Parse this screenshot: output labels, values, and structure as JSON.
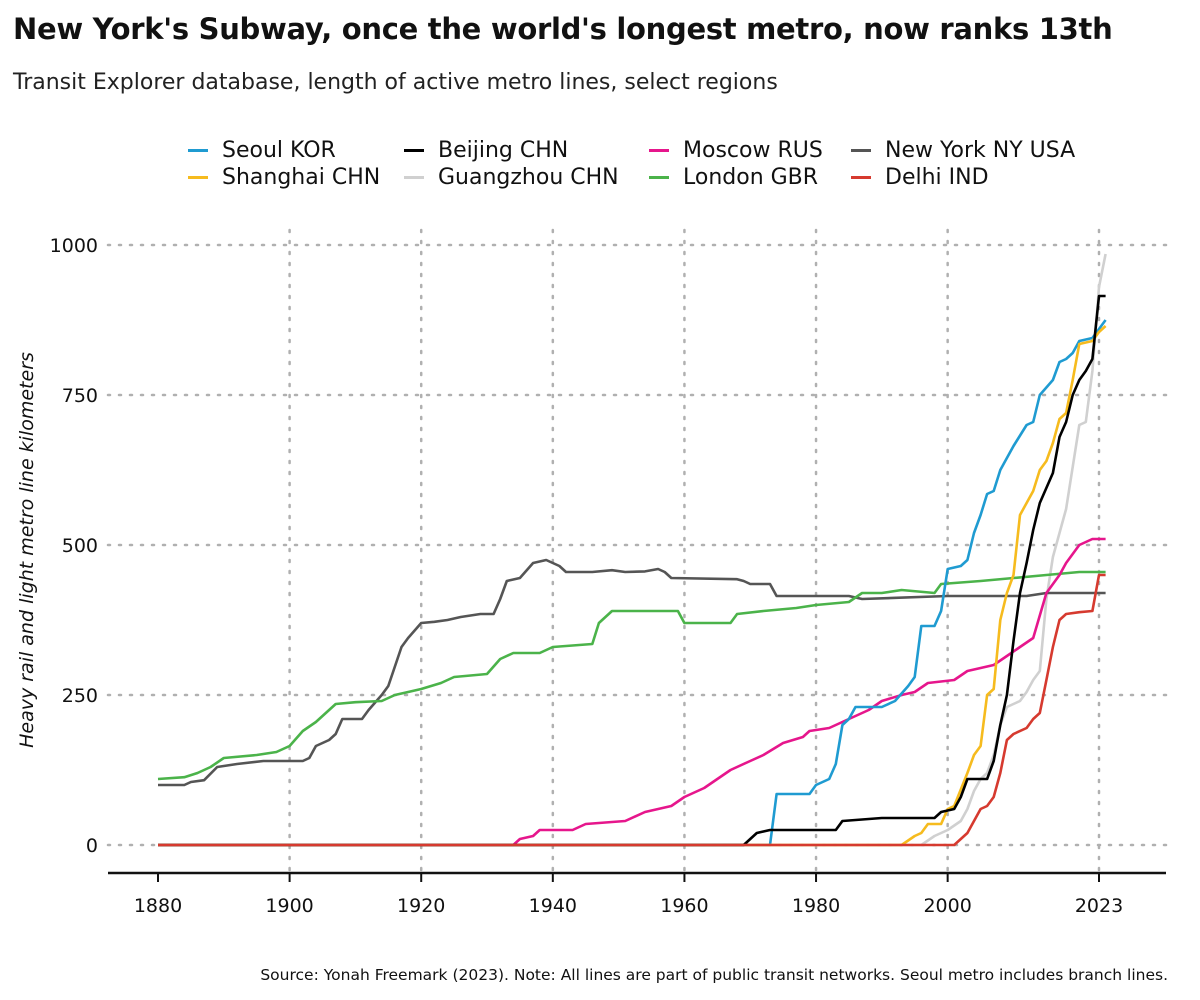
{
  "chart_data": {
    "type": "line",
    "title": "New York's Subway, once the world's longest metro, now ranks 13th",
    "subtitle": "Transit Explorer database, length of active metro lines, select regions",
    "xlabel": "",
    "ylabel": "Heavy rail and light metro line kilometers",
    "source": "Source: Yonah Freemark (2023). Note: All lines are part of public transit networks. Seoul metro includes branch lines.",
    "xlim": [
      1873,
      2033
    ],
    "ylim": [
      -45,
      1000
    ],
    "x_ticks": [
      1880,
      1900,
      1920,
      1940,
      1960,
      1980,
      2000,
      2023
    ],
    "y_ticks": [
      0,
      250,
      500,
      750,
      1000
    ],
    "grid": true,
    "legend_position": "top",
    "series": [
      {
        "name": "Seoul KOR",
        "color": "#1f9bd1",
        "points": [
          [
            1880,
            0
          ],
          [
            1973,
            0
          ],
          [
            1974,
            85
          ],
          [
            1979,
            85
          ],
          [
            1980,
            100
          ],
          [
            1982,
            110
          ],
          [
            1983,
            135
          ],
          [
            1984,
            200
          ],
          [
            1985,
            210
          ],
          [
            1986,
            230
          ],
          [
            1990,
            230
          ],
          [
            1992,
            240
          ],
          [
            1994,
            265
          ],
          [
            1995,
            280
          ],
          [
            1996,
            365
          ],
          [
            1998,
            365
          ],
          [
            1999,
            390
          ],
          [
            2000,
            460
          ],
          [
            2002,
            465
          ],
          [
            2003,
            475
          ],
          [
            2004,
            520
          ],
          [
            2005,
            550
          ],
          [
            2006,
            585
          ],
          [
            2007,
            590
          ],
          [
            2008,
            625
          ],
          [
            2010,
            665
          ],
          [
            2012,
            700
          ],
          [
            2013,
            705
          ],
          [
            2014,
            750
          ],
          [
            2016,
            775
          ],
          [
            2017,
            805
          ],
          [
            2018,
            810
          ],
          [
            2019,
            820
          ],
          [
            2020,
            840
          ],
          [
            2022,
            845
          ],
          [
            2023,
            860
          ],
          [
            2024,
            875
          ]
        ]
      },
      {
        "name": "Shanghai CHN",
        "color": "#f6bb1e",
        "points": [
          [
            1880,
            0
          ],
          [
            1993,
            0
          ],
          [
            1995,
            15
          ],
          [
            1996,
            20
          ],
          [
            1997,
            35
          ],
          [
            1999,
            35
          ],
          [
            2000,
            60
          ],
          [
            2001,
            65
          ],
          [
            2003,
            120
          ],
          [
            2004,
            150
          ],
          [
            2005,
            165
          ],
          [
            2006,
            250
          ],
          [
            2007,
            260
          ],
          [
            2008,
            375
          ],
          [
            2009,
            420
          ],
          [
            2010,
            450
          ],
          [
            2011,
            550
          ],
          [
            2012,
            570
          ],
          [
            2013,
            590
          ],
          [
            2014,
            625
          ],
          [
            2015,
            640
          ],
          [
            2016,
            670
          ],
          [
            2017,
            710
          ],
          [
            2018,
            720
          ],
          [
            2019,
            775
          ],
          [
            2020,
            835
          ],
          [
            2022,
            840
          ],
          [
            2023,
            855
          ],
          [
            2024,
            865
          ]
        ]
      },
      {
        "name": "Beijing CHN",
        "color": "#000000",
        "points": [
          [
            1880,
            0
          ],
          [
            1969,
            0
          ],
          [
            1971,
            20
          ],
          [
            1973,
            25
          ],
          [
            1983,
            25
          ],
          [
            1984,
            40
          ],
          [
            1990,
            45
          ],
          [
            1998,
            45
          ],
          [
            1999,
            55
          ],
          [
            2001,
            60
          ],
          [
            2002,
            80
          ],
          [
            2003,
            110
          ],
          [
            2006,
            110
          ],
          [
            2007,
            140
          ],
          [
            2008,
            200
          ],
          [
            2009,
            250
          ],
          [
            2010,
            340
          ],
          [
            2011,
            420
          ],
          [
            2012,
            470
          ],
          [
            2013,
            525
          ],
          [
            2014,
            570
          ],
          [
            2016,
            620
          ],
          [
            2017,
            680
          ],
          [
            2018,
            705
          ],
          [
            2019,
            750
          ],
          [
            2020,
            775
          ],
          [
            2021,
            790
          ],
          [
            2022,
            810
          ],
          [
            2023,
            915
          ],
          [
            2024,
            915
          ]
        ]
      },
      {
        "name": "Guangzhou CHN",
        "color": "#d0d0d0",
        "points": [
          [
            1880,
            0
          ],
          [
            1996,
            0
          ],
          [
            1998,
            15
          ],
          [
            2000,
            25
          ],
          [
            2002,
            40
          ],
          [
            2003,
            60
          ],
          [
            2004,
            90
          ],
          [
            2005,
            110
          ],
          [
            2006,
            120
          ],
          [
            2007,
            150
          ],
          [
            2008,
            200
          ],
          [
            2009,
            230
          ],
          [
            2011,
            240
          ],
          [
            2012,
            255
          ],
          [
            2013,
            275
          ],
          [
            2014,
            290
          ],
          [
            2015,
            410
          ],
          [
            2016,
            480
          ],
          [
            2017,
            520
          ],
          [
            2018,
            560
          ],
          [
            2020,
            700
          ],
          [
            2021,
            705
          ],
          [
            2022,
            790
          ],
          [
            2023,
            930
          ],
          [
            2024,
            985
          ]
        ]
      },
      {
        "name": "Moscow RUS",
        "color": "#e6168c",
        "points": [
          [
            1880,
            0
          ],
          [
            1934,
            0
          ],
          [
            1935,
            10
          ],
          [
            1937,
            15
          ],
          [
            1938,
            25
          ],
          [
            1943,
            25
          ],
          [
            1945,
            35
          ],
          [
            1951,
            40
          ],
          [
            1954,
            55
          ],
          [
            1958,
            65
          ],
          [
            1960,
            80
          ],
          [
            1963,
            95
          ],
          [
            1967,
            125
          ],
          [
            1970,
            140
          ],
          [
            1972,
            150
          ],
          [
            1975,
            170
          ],
          [
            1978,
            180
          ],
          [
            1979,
            190
          ],
          [
            1982,
            195
          ],
          [
            1985,
            210
          ],
          [
            1988,
            225
          ],
          [
            1990,
            240
          ],
          [
            1993,
            250
          ],
          [
            1995,
            255
          ],
          [
            1997,
            270
          ],
          [
            2001,
            275
          ],
          [
            2003,
            290
          ],
          [
            2005,
            295
          ],
          [
            2007,
            300
          ],
          [
            2009,
            315
          ],
          [
            2011,
            330
          ],
          [
            2013,
            345
          ],
          [
            2015,
            420
          ],
          [
            2017,
            450
          ],
          [
            2018,
            470
          ],
          [
            2020,
            500
          ],
          [
            2022,
            510
          ],
          [
            2024,
            510
          ]
        ]
      },
      {
        "name": "London GBR",
        "color": "#4bb34a",
        "points": [
          [
            1880,
            110
          ],
          [
            1884,
            113
          ],
          [
            1886,
            120
          ],
          [
            1888,
            130
          ],
          [
            1890,
            145
          ],
          [
            1895,
            150
          ],
          [
            1898,
            155
          ],
          [
            1900,
            165
          ],
          [
            1902,
            190
          ],
          [
            1904,
            205
          ],
          [
            1906,
            225
          ],
          [
            1907,
            235
          ],
          [
            1910,
            238
          ],
          [
            1914,
            240
          ],
          [
            1916,
            250
          ],
          [
            1918,
            255
          ],
          [
            1920,
            260
          ],
          [
            1923,
            270
          ],
          [
            1925,
            280
          ],
          [
            1930,
            285
          ],
          [
            1932,
            310
          ],
          [
            1934,
            320
          ],
          [
            1938,
            320
          ],
          [
            1940,
            330
          ],
          [
            1946,
            335
          ],
          [
            1947,
            370
          ],
          [
            1949,
            390
          ],
          [
            1959,
            390
          ],
          [
            1960,
            370
          ],
          [
            1967,
            370
          ],
          [
            1968,
            385
          ],
          [
            1972,
            390
          ],
          [
            1977,
            395
          ],
          [
            1980,
            400
          ],
          [
            1985,
            405
          ],
          [
            1987,
            420
          ],
          [
            1990,
            420
          ],
          [
            1993,
            425
          ],
          [
            1998,
            420
          ],
          [
            1999,
            435
          ],
          [
            2005,
            440
          ],
          [
            2010,
            445
          ],
          [
            2015,
            450
          ],
          [
            2020,
            455
          ],
          [
            2024,
            455
          ]
        ]
      },
      {
        "name": "New York NY USA",
        "color": "#555555",
        "points": [
          [
            1880,
            100
          ],
          [
            1884,
            100
          ],
          [
            1885,
            105
          ],
          [
            1887,
            108
          ],
          [
            1889,
            130
          ],
          [
            1892,
            135
          ],
          [
            1896,
            140
          ],
          [
            1902,
            140
          ],
          [
            1903,
            145
          ],
          [
            1904,
            165
          ],
          [
            1905,
            170
          ],
          [
            1906,
            175
          ],
          [
            1907,
            185
          ],
          [
            1908,
            210
          ],
          [
            1911,
            210
          ],
          [
            1912,
            225
          ],
          [
            1914,
            250
          ],
          [
            1915,
            265
          ],
          [
            1917,
            330
          ],
          [
            1918,
            345
          ],
          [
            1920,
            370
          ],
          [
            1922,
            372
          ],
          [
            1924,
            375
          ],
          [
            1926,
            380
          ],
          [
            1929,
            385
          ],
          [
            1931,
            385
          ],
          [
            1932,
            410
          ],
          [
            1933,
            440
          ],
          [
            1935,
            445
          ],
          [
            1937,
            470
          ],
          [
            1939,
            475
          ],
          [
            1941,
            465
          ],
          [
            1942,
            455
          ],
          [
            1946,
            455
          ],
          [
            1949,
            458
          ],
          [
            1951,
            455
          ],
          [
            1954,
            456
          ],
          [
            1956,
            460
          ],
          [
            1957,
            455
          ],
          [
            1958,
            445
          ],
          [
            1968,
            443
          ],
          [
            1969,
            440
          ],
          [
            1970,
            435
          ],
          [
            1973,
            435
          ],
          [
            1974,
            415
          ],
          [
            1976,
            415
          ],
          [
            1980,
            415
          ],
          [
            1985,
            415
          ],
          [
            1987,
            410
          ],
          [
            2000,
            415
          ],
          [
            2012,
            415
          ],
          [
            2015,
            420
          ],
          [
            2024,
            420
          ]
        ]
      },
      {
        "name": "Delhi IND",
        "color": "#d63a2f",
        "points": [
          [
            1880,
            0
          ],
          [
            2001,
            0
          ],
          [
            2002,
            10
          ],
          [
            2003,
            20
          ],
          [
            2004,
            40
          ],
          [
            2005,
            60
          ],
          [
            2006,
            65
          ],
          [
            2007,
            80
          ],
          [
            2008,
            120
          ],
          [
            2009,
            175
          ],
          [
            2010,
            185
          ],
          [
            2012,
            195
          ],
          [
            2013,
            210
          ],
          [
            2014,
            220
          ],
          [
            2015,
            275
          ],
          [
            2016,
            330
          ],
          [
            2017,
            375
          ],
          [
            2018,
            385
          ],
          [
            2020,
            388
          ],
          [
            2022,
            390
          ],
          [
            2023,
            450
          ],
          [
            2024,
            450
          ]
        ]
      }
    ]
  }
}
